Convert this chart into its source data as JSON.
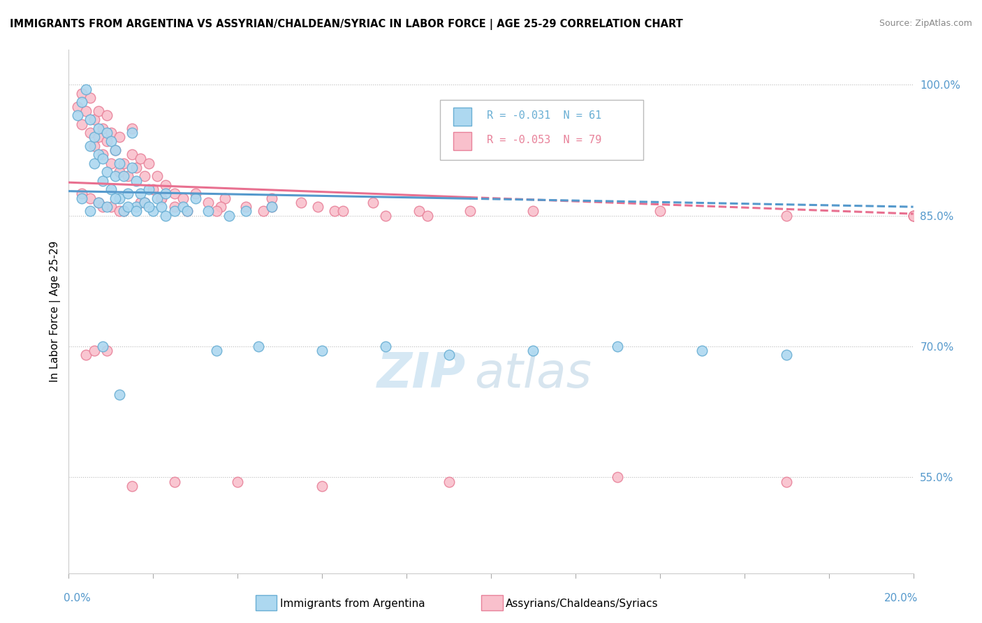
{
  "title": "IMMIGRANTS FROM ARGENTINA VS ASSYRIAN/CHALDEAN/SYRIAC IN LABOR FORCE | AGE 25-29 CORRELATION CHART",
  "source": "Source: ZipAtlas.com",
  "ylabel": "In Labor Force | Age 25-29",
  "xmin": 0.0,
  "xmax": 0.2,
  "ymin": 0.44,
  "ymax": 1.04,
  "ytick_vals": [
    0.55,
    0.7,
    0.85,
    1.0
  ],
  "legend_r1": "R = -0.031",
  "legend_n1": "N = 61",
  "legend_r2": "R = -0.053",
  "legend_n2": "N = 79",
  "color_blue_fill": "#ADD8F0",
  "color_pink_fill": "#F9C0CC",
  "color_blue_edge": "#6aafd4",
  "color_pink_edge": "#e8829a",
  "color_blue_line": "#5599cc",
  "color_pink_line": "#e87090",
  "color_right_labels": "#5599cc",
  "background": "#ffffff",
  "watermark_text": "ZIP",
  "watermark_text2": "atlas",
  "blue_points_x": [
    0.002,
    0.003,
    0.004,
    0.005,
    0.005,
    0.006,
    0.006,
    0.007,
    0.007,
    0.008,
    0.008,
    0.009,
    0.009,
    0.01,
    0.01,
    0.011,
    0.011,
    0.012,
    0.012,
    0.013,
    0.013,
    0.014,
    0.015,
    0.015,
    0.016,
    0.016,
    0.017,
    0.018,
    0.019,
    0.02,
    0.021,
    0.022,
    0.023,
    0.025,
    0.027,
    0.03,
    0.033,
    0.038,
    0.042,
    0.048,
    0.003,
    0.005,
    0.007,
    0.009,
    0.011,
    0.014,
    0.016,
    0.019,
    0.023,
    0.028,
    0.035,
    0.045,
    0.06,
    0.075,
    0.09,
    0.11,
    0.13,
    0.15,
    0.17,
    0.008,
    0.012
  ],
  "blue_points_y": [
    0.965,
    0.98,
    0.995,
    0.93,
    0.96,
    0.91,
    0.94,
    0.92,
    0.95,
    0.89,
    0.915,
    0.9,
    0.945,
    0.88,
    0.935,
    0.895,
    0.925,
    0.87,
    0.91,
    0.855,
    0.895,
    0.875,
    0.905,
    0.945,
    0.86,
    0.89,
    0.875,
    0.865,
    0.88,
    0.855,
    0.87,
    0.86,
    0.875,
    0.855,
    0.86,
    0.87,
    0.855,
    0.85,
    0.855,
    0.86,
    0.87,
    0.855,
    0.865,
    0.86,
    0.87,
    0.86,
    0.855,
    0.86,
    0.85,
    0.855,
    0.695,
    0.7,
    0.695,
    0.7,
    0.69,
    0.695,
    0.7,
    0.695,
    0.69,
    0.7,
    0.645
  ],
  "pink_points_x": [
    0.002,
    0.003,
    0.003,
    0.004,
    0.005,
    0.005,
    0.006,
    0.006,
    0.007,
    0.007,
    0.008,
    0.008,
    0.009,
    0.009,
    0.01,
    0.01,
    0.011,
    0.012,
    0.012,
    0.013,
    0.014,
    0.015,
    0.015,
    0.016,
    0.017,
    0.018,
    0.019,
    0.02,
    0.021,
    0.022,
    0.023,
    0.025,
    0.027,
    0.03,
    0.033,
    0.037,
    0.042,
    0.048,
    0.055,
    0.063,
    0.072,
    0.083,
    0.005,
    0.007,
    0.01,
    0.013,
    0.017,
    0.022,
    0.028,
    0.036,
    0.046,
    0.059,
    0.075,
    0.095,
    0.003,
    0.008,
    0.012,
    0.018,
    0.025,
    0.035,
    0.048,
    0.065,
    0.085,
    0.11,
    0.14,
    0.17,
    0.2,
    0.004,
    0.006,
    0.009,
    0.015,
    0.025,
    0.04,
    0.06,
    0.09,
    0.13,
    0.17,
    0.2,
    0.2
  ],
  "pink_points_y": [
    0.975,
    0.955,
    0.99,
    0.97,
    0.945,
    0.985,
    0.93,
    0.96,
    0.94,
    0.97,
    0.92,
    0.95,
    0.935,
    0.965,
    0.91,
    0.945,
    0.925,
    0.9,
    0.94,
    0.91,
    0.895,
    0.92,
    0.95,
    0.905,
    0.915,
    0.895,
    0.91,
    0.88,
    0.895,
    0.87,
    0.885,
    0.875,
    0.87,
    0.875,
    0.865,
    0.87,
    0.86,
    0.87,
    0.865,
    0.855,
    0.865,
    0.855,
    0.87,
    0.865,
    0.86,
    0.855,
    0.865,
    0.87,
    0.855,
    0.86,
    0.855,
    0.86,
    0.85,
    0.855,
    0.875,
    0.86,
    0.855,
    0.865,
    0.86,
    0.855,
    0.86,
    0.855,
    0.85,
    0.855,
    0.855,
    0.85,
    0.85,
    0.69,
    0.695,
    0.695,
    0.54,
    0.545,
    0.545,
    0.54,
    0.545,
    0.55,
    0.545,
    0.85,
    0.85
  ]
}
